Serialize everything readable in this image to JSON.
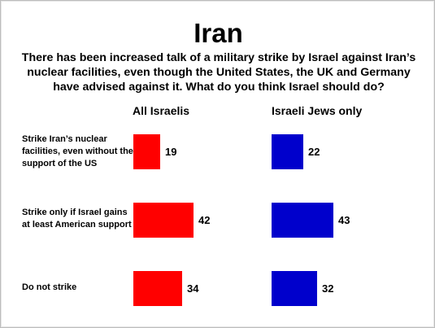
{
  "slide": {
    "title": "Iran",
    "question": "There has been increased talk of a military strike by Israel against Iran’s nuclear facilities, even though the United States, the UK and Germany have advised against it.  What do you think Israel should do?"
  },
  "chart_data": {
    "type": "bar",
    "orientation": "horizontal",
    "title": "Iran",
    "categories": [
      "Strike Iran’s nuclear facilities, even without the support of the US",
      "Strike only if Israel gains at least American support",
      "Do not strike"
    ],
    "series": [
      {
        "name": "All Israelis",
        "values": [
          19,
          42,
          34
        ],
        "color": "#ff0000"
      },
      {
        "name": "Israeli Jews only",
        "values": [
          22,
          43,
          32
        ],
        "color": "#0000cc"
      }
    ],
    "xlim": [
      0,
      45
    ],
    "grid": false
  }
}
